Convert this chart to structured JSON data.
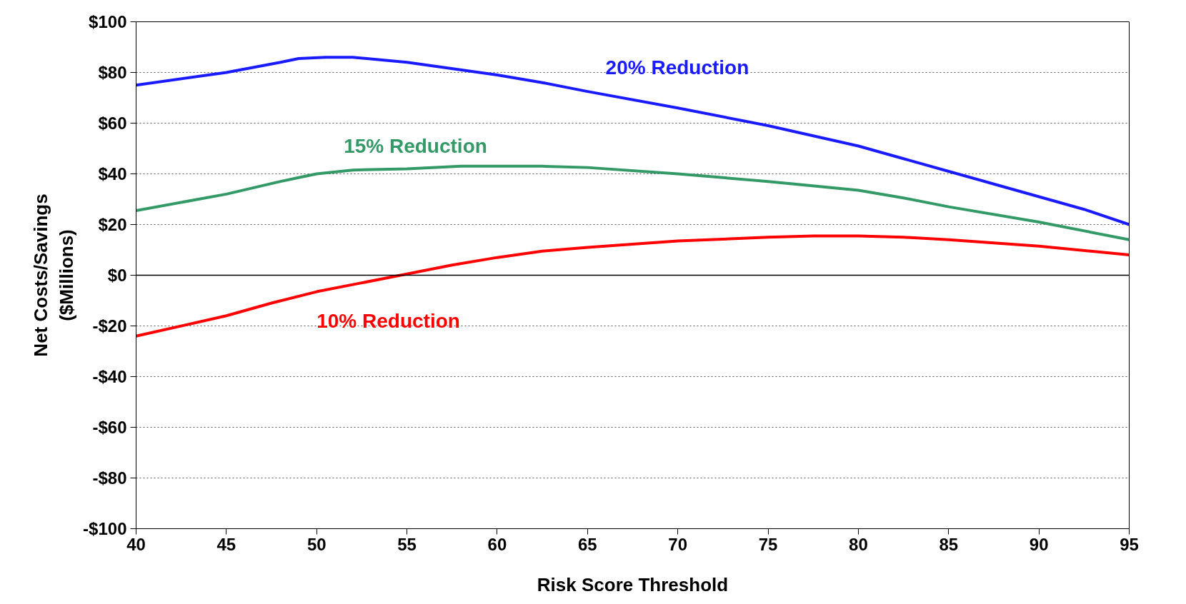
{
  "chart_data": {
    "type": "line",
    "xlabel": "Risk Score Threshold",
    "ylabel": "Net Costs/Savings\n($Millions)",
    "xlim": [
      40,
      95
    ],
    "xticks": [
      40,
      45,
      50,
      55,
      60,
      65,
      70,
      75,
      80,
      85,
      90,
      95
    ],
    "ylim": [
      -100,
      100
    ],
    "yticks": [
      {
        "value": -100,
        "label": "-$100"
      },
      {
        "value": -80,
        "label": "-$80"
      },
      {
        "value": -60,
        "label": "-$60"
      },
      {
        "value": -40,
        "label": "-$40"
      },
      {
        "value": -20,
        "label": "-$20"
      },
      {
        "value": 0,
        "label": "$0"
      },
      {
        "value": 20,
        "label": "$20"
      },
      {
        "value": 40,
        "label": "$40"
      },
      {
        "value": 60,
        "label": "$60"
      },
      {
        "value": 80,
        "label": "$80"
      },
      {
        "value": 100,
        "label": "$100"
      }
    ],
    "grid": "y",
    "marker": "none",
    "line_style": "solid",
    "ref_lines": [
      {
        "axis": "y",
        "value": 0,
        "color": "#000000",
        "line_style": "solid"
      }
    ],
    "series": [
      {
        "name": "20% Reduction",
        "color": "#1a1aff",
        "x": [
          40,
          45,
          48,
          49,
          50.5,
          52,
          55,
          60,
          62.5,
          65,
          70,
          75,
          80,
          82.5,
          85,
          87.5,
          90,
          92.5,
          95
        ],
        "values": [
          75,
          80,
          84,
          85.5,
          86,
          86,
          84,
          79,
          76,
          72.5,
          66,
          59,
          51,
          46,
          41,
          36,
          31,
          26,
          20
        ]
      },
      {
        "name": "15% Reduction",
        "color": "#339966",
        "x": [
          40,
          45,
          48,
          49,
          50,
          52,
          55,
          58,
          62.5,
          65,
          70,
          75,
          80,
          82.5,
          85,
          90,
          95
        ],
        "values": [
          25.5,
          32,
          37,
          38.5,
          40,
          41.5,
          42,
          43,
          43,
          42.5,
          40,
          37,
          33.5,
          30.5,
          27,
          21,
          14
        ]
      },
      {
        "name": "10% Reduction",
        "color": "#ff0000",
        "x": [
          40,
          45,
          47.5,
          50,
          52.5,
          55,
          57.5,
          60,
          62.5,
          65,
          70,
          75,
          77.5,
          80,
          82.5,
          85,
          90,
          95
        ],
        "values": [
          -24,
          -16,
          -11,
          -6.5,
          -3,
          0.5,
          4,
          7,
          9.5,
          11,
          13.5,
          15,
          15.5,
          15.5,
          15,
          14,
          11.5,
          8
        ]
      }
    ]
  }
}
